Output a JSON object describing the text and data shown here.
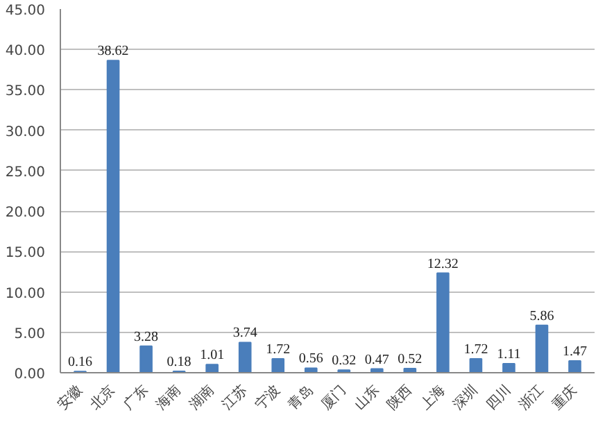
{
  "chart_data": {
    "type": "bar",
    "categories": [
      "安徽",
      "北京",
      "广东",
      "海南",
      "湖南",
      "江苏",
      "宁波",
      "青岛",
      "厦门",
      "山东",
      "陕西",
      "上海",
      "深圳",
      "四川",
      "浙江",
      "重庆"
    ],
    "values": [
      0.16,
      38.62,
      3.28,
      0.18,
      1.01,
      3.74,
      1.72,
      0.56,
      0.32,
      0.47,
      0.52,
      12.32,
      1.72,
      1.11,
      5.86,
      1.47
    ],
    "color": "#4a7ebb",
    "ylim": [
      0,
      45
    ],
    "yticks": [
      {
        "value": 0,
        "label": "0.00"
      },
      {
        "value": 5,
        "label": "5.00"
      },
      {
        "value": 10,
        "label": "10.00"
      },
      {
        "value": 15,
        "label": "15.00"
      },
      {
        "value": 20,
        "label": "20.00"
      },
      {
        "value": 25,
        "label": "25.00"
      },
      {
        "value": 30,
        "label": "30.00"
      },
      {
        "value": 35,
        "label": "35.00"
      },
      {
        "value": 40,
        "label": "40.00"
      },
      {
        "value": 45,
        "label": "45.00"
      }
    ],
    "grid": "y",
    "data_labels": true
  }
}
